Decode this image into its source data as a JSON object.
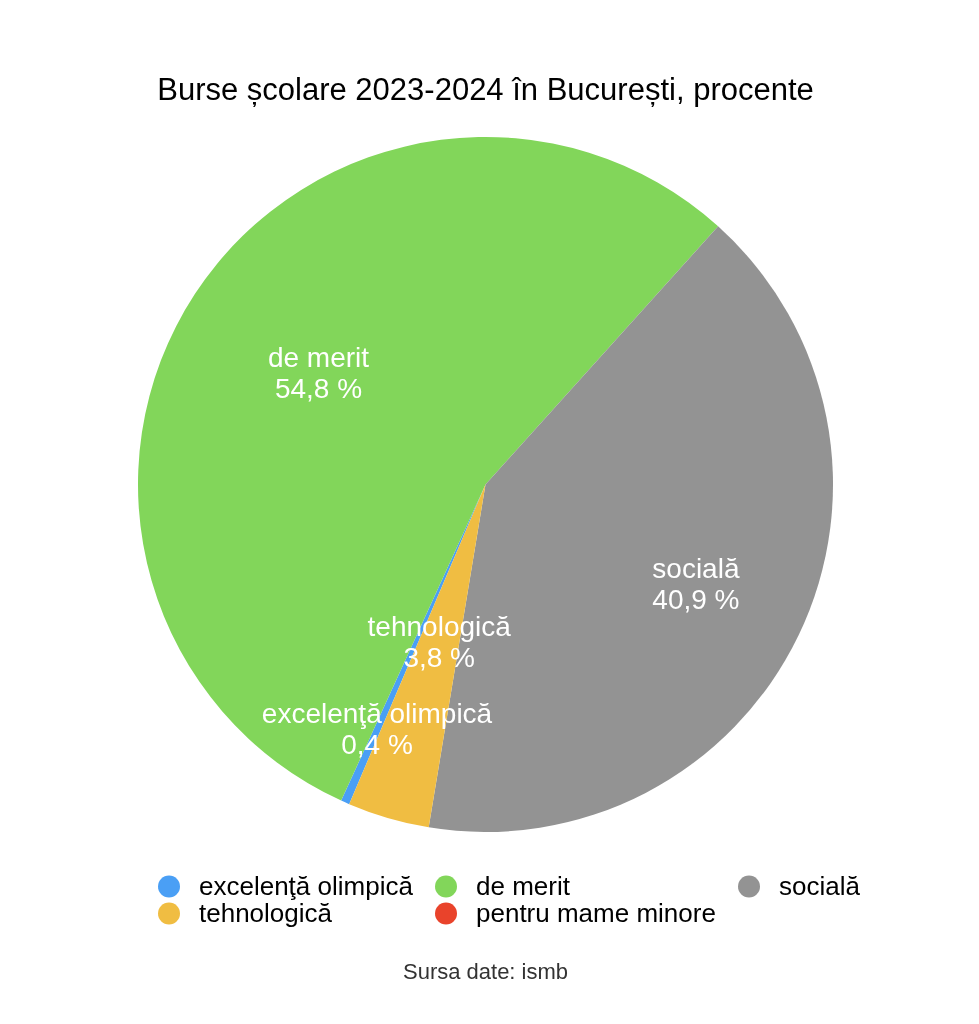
{
  "chart_data": {
    "type": "pie",
    "title": "Burse școlare 2023-2024 în București, procente",
    "categories": [
      "excelenţă olimpică",
      "de merit",
      "socială",
      "tehnologică",
      "pentru mame minore"
    ],
    "values": [
      0.4,
      54.8,
      40.9,
      3.8,
      0
    ],
    "colors": [
      "#4a9ff5",
      "#82d65a",
      "#939393",
      "#f0bd42",
      "#e9432b"
    ],
    "value_labels": [
      "0,4 %",
      "54,8 %",
      "40,9 %",
      "3,8 %",
      null
    ],
    "legend": "bottom",
    "annotations": [
      "Sursa date: ismb"
    ]
  }
}
